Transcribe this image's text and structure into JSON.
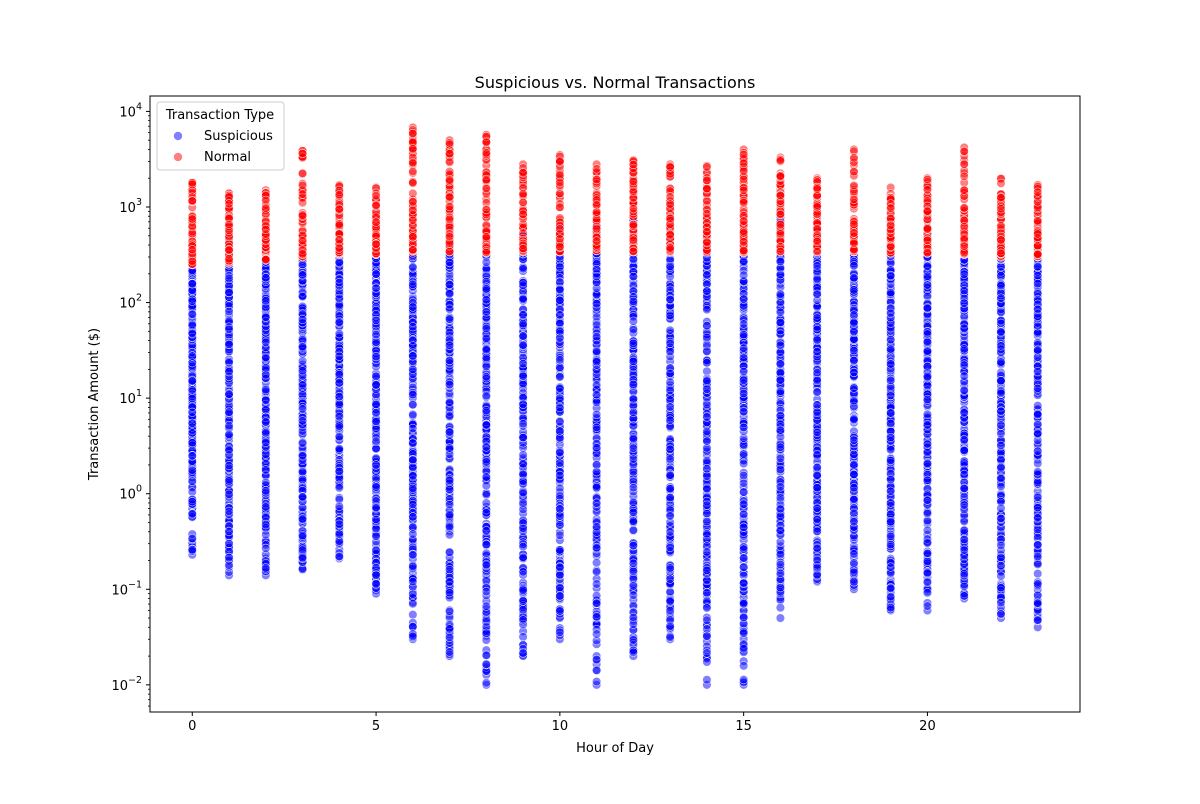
{
  "chart_data": {
    "type": "scatter",
    "title": "Suspicious vs. Normal Transactions",
    "xlabel": "Hour of Day",
    "ylabel": "Transaction Amount ($)",
    "xlim": [
      -1.15,
      24.15
    ],
    "ylim": [
      0.0052,
      14500
    ],
    "yscale": "log",
    "grid": false,
    "legend": {
      "title": "Transaction Type",
      "placement": "top-left"
    },
    "x_ticks": [
      0,
      5,
      10,
      15,
      20
    ],
    "x_tick_labels": [
      "0",
      "5",
      "10",
      "15",
      "20"
    ],
    "y_ticks": [
      0.01,
      0.1,
      1,
      10,
      100,
      1000,
      10000
    ],
    "y_tick_labels": [
      [
        "10",
        "−2"
      ],
      [
        "10",
        "−1"
      ],
      [
        "10",
        "0"
      ],
      [
        "10",
        "1"
      ],
      [
        "10",
        "2"
      ],
      [
        "10",
        "3"
      ],
      [
        "10",
        "4"
      ]
    ],
    "hours": [
      0,
      1,
      2,
      3,
      4,
      5,
      6,
      7,
      8,
      9,
      10,
      11,
      12,
      13,
      14,
      15,
      16,
      17,
      18,
      19,
      20,
      21,
      22,
      23
    ],
    "series": [
      {
        "name": "Suspicious",
        "color": "#0000ff",
        "alpha": 0.5,
        "points": [
          {
            "hour": 0,
            "min": 0.23,
            "max": 320
          },
          {
            "hour": 1,
            "min": 0.14,
            "max": 440
          },
          {
            "hour": 2,
            "min": 0.14,
            "max": 300
          },
          {
            "hour": 3,
            "min": 0.16,
            "max": 330
          },
          {
            "hour": 4,
            "min": 0.21,
            "max": 380
          },
          {
            "hour": 5,
            "min": 0.09,
            "max": 420
          },
          {
            "hour": 6,
            "min": 0.03,
            "max": 450
          },
          {
            "hour": 7,
            "min": 0.02,
            "max": 410
          },
          {
            "hour": 8,
            "min": 0.01,
            "max": 380
          },
          {
            "hour": 9,
            "min": 0.02,
            "max": 500
          },
          {
            "hour": 10,
            "min": 0.03,
            "max": 630
          },
          {
            "hour": 11,
            "min": 0.01,
            "max": 790
          },
          {
            "hour": 12,
            "min": 0.02,
            "max": 720
          },
          {
            "hour": 13,
            "min": 0.03,
            "max": 780
          },
          {
            "hour": 14,
            "min": 0.01,
            "max": 700
          },
          {
            "hour": 15,
            "min": 0.01,
            "max": 560
          },
          {
            "hour": 16,
            "min": 0.05,
            "max": 900
          },
          {
            "hour": 17,
            "min": 0.12,
            "max": 650
          },
          {
            "hour": 18,
            "min": 0.1,
            "max": 580
          },
          {
            "hour": 19,
            "min": 0.06,
            "max": 520
          },
          {
            "hour": 20,
            "min": 0.06,
            "max": 520
          },
          {
            "hour": 21,
            "min": 0.08,
            "max": 440
          },
          {
            "hour": 22,
            "min": 0.05,
            "max": 320
          },
          {
            "hour": 23,
            "min": 0.04,
            "max": 380
          }
        ]
      },
      {
        "name": "Normal",
        "color": "#ff0000",
        "alpha": 0.5,
        "points": [
          {
            "hour": 0,
            "min": 250,
            "max": 1800
          },
          {
            "hour": 1,
            "min": 260,
            "max": 1400
          },
          {
            "hour": 2,
            "min": 280,
            "max": 1500
          },
          {
            "hour": 3,
            "min": 300,
            "max": 3900
          },
          {
            "hour": 4,
            "min": 320,
            "max": 1700
          },
          {
            "hour": 5,
            "min": 320,
            "max": 1600
          },
          {
            "hour": 6,
            "min": 330,
            "max": 6800
          },
          {
            "hour": 7,
            "min": 340,
            "max": 5000
          },
          {
            "hour": 8,
            "min": 330,
            "max": 5700
          },
          {
            "hour": 9,
            "min": 340,
            "max": 2800
          },
          {
            "hour": 10,
            "min": 340,
            "max": 3500
          },
          {
            "hour": 11,
            "min": 350,
            "max": 2800
          },
          {
            "hour": 12,
            "min": 340,
            "max": 3100
          },
          {
            "hour": 13,
            "min": 340,
            "max": 2800
          },
          {
            "hour": 14,
            "min": 340,
            "max": 2700
          },
          {
            "hour": 15,
            "min": 330,
            "max": 4000
          },
          {
            "hour": 16,
            "min": 340,
            "max": 3300
          },
          {
            "hour": 17,
            "min": 340,
            "max": 2000
          },
          {
            "hour": 18,
            "min": 340,
            "max": 4000
          },
          {
            "hour": 19,
            "min": 330,
            "max": 1600
          },
          {
            "hour": 20,
            "min": 330,
            "max": 2000
          },
          {
            "hour": 21,
            "min": 320,
            "max": 4200
          },
          {
            "hour": 22,
            "min": 300,
            "max": 2000
          },
          {
            "hour": 23,
            "min": 300,
            "max": 1700
          }
        ]
      }
    ]
  }
}
